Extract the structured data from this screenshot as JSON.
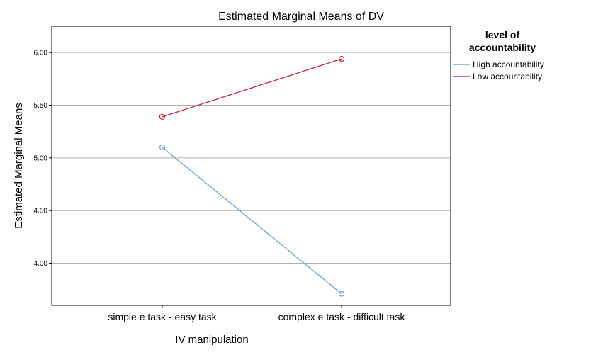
{
  "chart_data": {
    "type": "line",
    "title": "Estimated Marginal Means of DV",
    "xlabel": "IV manipulation",
    "ylabel": "Estimated Marginal Means",
    "categories": [
      "simple e task - easy task",
      "complex e task - difficult task"
    ],
    "yticks": [
      "4.00",
      "4.50",
      "5.00",
      "5.50",
      "6.00"
    ],
    "ylim": [
      3.6,
      6.25
    ],
    "grid": true,
    "legend_title": "level of accountability",
    "legend_title_lines": [
      "level of",
      "accountability"
    ],
    "legend_position": "right",
    "series": [
      {
        "name": "High accountability",
        "color": "#5b9bd5",
        "values": [
          5.1,
          3.71
        ]
      },
      {
        "name": "Low accountability",
        "color": "#c8102e",
        "values": [
          5.39,
          5.94
        ]
      }
    ]
  }
}
